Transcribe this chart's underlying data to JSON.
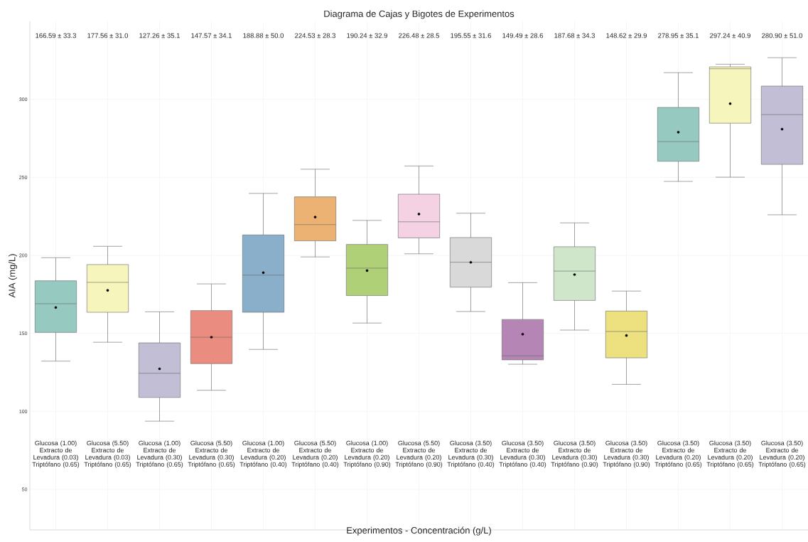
{
  "chart_data": {
    "type": "box",
    "title": "Diagrama de Cajas y Bigotes de Experimentos",
    "xlabel": "Experimentos - Concentración (g/L)",
    "ylabel": "AIA (mg/L)",
    "categories": [
      "Glucosa (1.00) Extracto de Levadura (0.03) Triptófano (0.65)",
      "Glucosa (5.50) Extracto de Levadura (0.03) Triptófano (0.65)",
      "Glucosa (1.00) Extracto de Levadura (0.30) Triptófano (0.65)",
      "Glucosa (5.50) Extracto de Levadura (0.30) Triptófano (0.65)",
      "Glucosa (1.00) Extracto de Levadura (0.20) Triptófano (0.40)",
      "Glucosa (5.50) Extracto de Levadura (0.20) Triptófano (0.40)",
      "Glucosa (1.00) Extracto de Levadura (0.20) Triptófano (0.90)",
      "Glucosa (5.50) Extracto de Levadura (0.20) Triptófano (0.90)",
      "Glucosa (3.50) Extracto de Levadura (0.30) Triptófano (0.40)",
      "Glucosa (3.50) Extracto de Levadura (0.30) Triptófano (0.40)",
      "Glucosa (3.50) Extracto de Levadura (0.30) Triptófano (0.90)",
      "Glucosa (3.50) Extracto de Levadura (0.30) Triptófano (0.90)",
      "Glucosa (3.50) Extracto de Levadura (0.20) Triptófano (0.65)",
      "Glucosa (3.50) Extracto de Levadura (0.20) Triptófano (0.65)",
      "Glucosa (3.50) Extracto de Levadura (0.20) Triptófano (0.65)"
    ],
    "boxes": [
      {
        "low": 132.2,
        "q1": 150.6,
        "median": 169.0,
        "q3": 183.7,
        "high": 198.5,
        "mean": 166.59
      },
      {
        "low": 144.3,
        "q1": 163.5,
        "median": 182.7,
        "q3": 194.1,
        "high": 205.8,
        "mean": 177.56
      },
      {
        "low": 93.7,
        "q1": 108.9,
        "median": 124.4,
        "q3": 143.9,
        "high": 163.8,
        "mean": 127.26
      },
      {
        "low": 113.5,
        "q1": 130.6,
        "median": 147.5,
        "q3": 164.6,
        "high": 181.7,
        "mean": 147.57
      },
      {
        "low": 139.7,
        "q1": 163.5,
        "median": 187.3,
        "q3": 213.1,
        "high": 239.7,
        "mean": 188.88
      },
      {
        "low": 199.0,
        "q1": 209.3,
        "median": 219.7,
        "q3": 237.5,
        "high": 255.2,
        "mean": 224.53
      },
      {
        "low": 156.6,
        "q1": 174.2,
        "median": 191.8,
        "q3": 207.0,
        "high": 222.4,
        "mean": 190.24
      },
      {
        "low": 201.0,
        "q1": 211.2,
        "median": 221.5,
        "q3": 239.2,
        "high": 257.3,
        "mean": 226.48
      },
      {
        "low": 164.0,
        "q1": 179.6,
        "median": 195.6,
        "q3": 211.4,
        "high": 227.0,
        "mean": 195.55
      },
      {
        "low": 130.2,
        "q1": 133.0,
        "median": 135.6,
        "q3": 158.9,
        "high": 182.5,
        "mean": 149.49
      },
      {
        "low": 152.1,
        "q1": 171.1,
        "median": 189.9,
        "q3": 205.5,
        "high": 220.8,
        "mean": 187.68
      },
      {
        "low": 117.3,
        "q1": 134.3,
        "median": 151.2,
        "q3": 164.3,
        "high": 177.1,
        "mean": 148.62
      },
      {
        "low": 247.4,
        "q1": 260.3,
        "median": 272.9,
        "q3": 294.8,
        "high": 317.1,
        "mean": 278.95
      },
      {
        "low": 250.1,
        "q1": 284.7,
        "median": 319.6,
        "q3": 320.8,
        "high": 322.5,
        "mean": 297.24
      },
      {
        "low": 226.0,
        "q1": 258.3,
        "median": 290.2,
        "q3": 308.5,
        "high": 326.7,
        "mean": 280.9
      }
    ],
    "colors": [
      "#96cac1",
      "#f6f5bb",
      "#c2bed6",
      "#ea8c80",
      "#8aafca",
      "#ebb274",
      "#b0d077",
      "#f5d2e3",
      "#d9d9d9",
      "#b586b5",
      "#cfe6cb",
      "#ede07f",
      "#96cac1",
      "#f6f5bb",
      "#c2bed6"
    ],
    "annotations": [
      "166.59 ± 33.3",
      "177.56 ± 31.0",
      "127.26 ± 35.1",
      "147.57 ± 34.1",
      "188.88 ± 50.0",
      "224.53 ± 28.3",
      "190.24 ± 32.9",
      "226.48 ± 28.5",
      "195.55 ± 31.6",
      "149.49 ± 28.6",
      "187.68 ± 34.3",
      "148.62 ± 29.9",
      "278.95 ± 35.1",
      "297.24 ± 40.9",
      "280.90 ± 51.0"
    ],
    "ylim": [
      24,
      350
    ],
    "yticks": [
      50,
      100,
      150,
      200,
      250,
      300
    ],
    "grid": true
  }
}
